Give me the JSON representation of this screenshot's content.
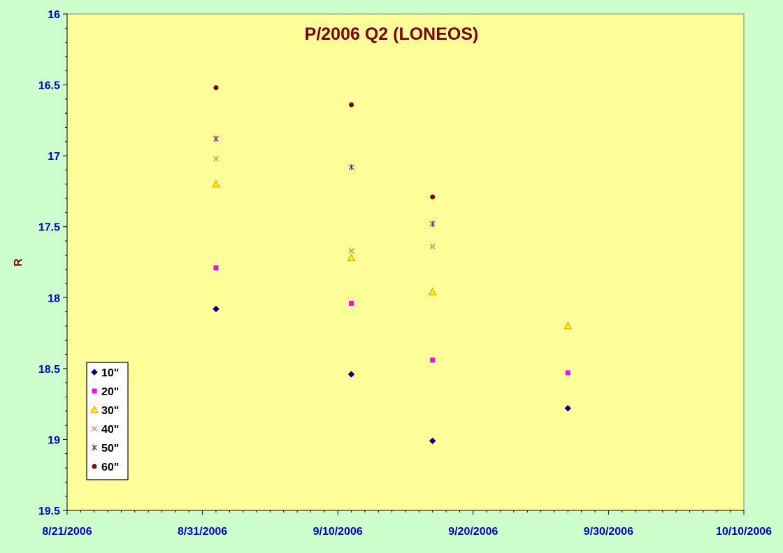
{
  "chart_data": {
    "type": "scatter",
    "title": "P/2006 Q2 (LONEOS)",
    "xlabel": "",
    "ylabel": "R",
    "x_range": [
      "8/21/2006",
      "10/10/2006"
    ],
    "x_ticks": [
      "8/21/2006",
      "8/31/2006",
      "9/10/2006",
      "9/20/2006",
      "9/30/2006",
      "10/10/2006"
    ],
    "ylim": [
      16,
      19.5
    ],
    "y_reversed": true,
    "y_ticks": [
      "16",
      "16.5",
      "17",
      "17.5",
      "18",
      "18.5",
      "19",
      "19.5"
    ],
    "grid": false,
    "legend_position": "bottom-left",
    "series": [
      {
        "name": "10\"",
        "marker": "diamond",
        "color": "#000080",
        "points": [
          {
            "x": "9/1/2006",
            "y": 18.08
          },
          {
            "x": "9/11/2006",
            "y": 18.54
          },
          {
            "x": "9/17/2006",
            "y": 19.01
          },
          {
            "x": "9/27/2006",
            "y": 18.78
          }
        ]
      },
      {
        "name": "20\"",
        "marker": "square",
        "color": "#ff00ff",
        "points": [
          {
            "x": "9/1/2006",
            "y": 17.79
          },
          {
            "x": "9/11/2006",
            "y": 18.04
          },
          {
            "x": "9/17/2006",
            "y": 18.44
          },
          {
            "x": "9/27/2006",
            "y": 18.53
          }
        ]
      },
      {
        "name": "30\"",
        "marker": "triangle",
        "color": "#ff9900",
        "points": [
          {
            "x": "9/1/2006",
            "y": 17.2
          },
          {
            "x": "9/11/2006",
            "y": 17.72
          },
          {
            "x": "9/17/2006",
            "y": 17.96
          },
          {
            "x": "9/27/2006",
            "y": 18.2
          }
        ]
      },
      {
        "name": "40\"",
        "marker": "x",
        "color": "#ff5050",
        "points": [
          {
            "x": "9/1/2006",
            "y": 17.02
          },
          {
            "x": "9/11/2006",
            "y": 17.67
          },
          {
            "x": "9/17/2006",
            "y": 17.64
          }
        ]
      },
      {
        "name": "50\"",
        "marker": "star",
        "color": "#800080",
        "points": [
          {
            "x": "9/1/2006",
            "y": 16.88
          },
          {
            "x": "9/11/2006",
            "y": 17.08
          },
          {
            "x": "9/17/2006",
            "y": 17.48
          }
        ]
      },
      {
        "name": "60\"",
        "marker": "circle",
        "color": "#800000",
        "points": [
          {
            "x": "9/1/2006",
            "y": 16.52
          },
          {
            "x": "9/11/2006",
            "y": 16.64
          },
          {
            "x": "9/17/2006",
            "y": 17.29
          }
        ]
      }
    ]
  },
  "colors": {
    "figure_background": "#ccffcc",
    "plot_background": "#ffff99",
    "tick_label": "#0000cc",
    "title": "#800000",
    "axis_label": "#800000"
  }
}
